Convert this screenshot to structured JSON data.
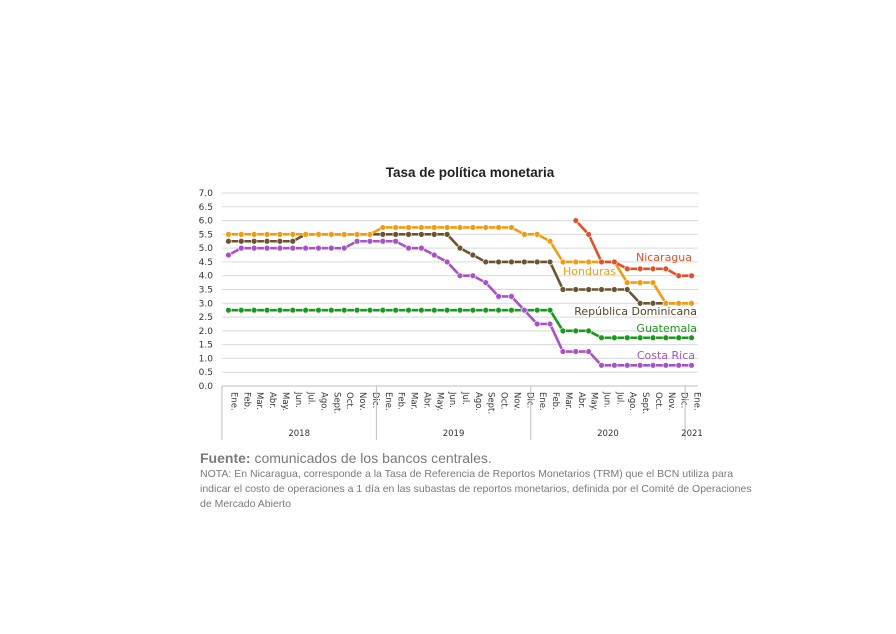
{
  "chart_data": {
    "type": "line",
    "title": "Tasa de política monetaria",
    "xlabel": "",
    "ylabel": "",
    "ylim": [
      0,
      7
    ],
    "y_ticks": [
      "0.0",
      "0.5",
      "1.0",
      "1.5",
      "2.0",
      "2.5",
      "3.0",
      "3.5",
      "4.0",
      "4.5",
      "5.0",
      "5.5",
      "6.0",
      "6.5",
      "7.0"
    ],
    "grid": true,
    "legend": "inline labels at right end of series",
    "categories": [
      "Ene.",
      "Feb.",
      "Mar.",
      "Abr.",
      "May.",
      "Jun.",
      "Jul.",
      "Ago.",
      "Sept.",
      "Oct.",
      "Nov.",
      "Dic.",
      "Ene.",
      "Feb.",
      "Mar.",
      "Abr.",
      "May.",
      "Jun.",
      "Jul.",
      "Ago.",
      "Sept.",
      "Oct.",
      "Nov.",
      "Dic.",
      "Ene.",
      "Feb.",
      "Mar.",
      "Abr.",
      "May.",
      "Jun.",
      "Jul.",
      "Ago.",
      "Sept.",
      "Oct.",
      "Nov.",
      "Dic.",
      "Ene."
    ],
    "year_groups": [
      {
        "label": "2018",
        "start": 0,
        "end": 11
      },
      {
        "label": "2019",
        "start": 12,
        "end": 23
      },
      {
        "label": "2020",
        "start": 24,
        "end": 35
      },
      {
        "label": "2021",
        "start": 36,
        "end": 36
      }
    ],
    "series": [
      {
        "name": "Nicaragua",
        "color": "#e0522a",
        "label_color": "#e0522a",
        "values": [
          null,
          null,
          null,
          null,
          null,
          null,
          null,
          null,
          null,
          null,
          null,
          null,
          null,
          null,
          null,
          null,
          null,
          null,
          null,
          null,
          null,
          null,
          null,
          null,
          null,
          null,
          null,
          6.0,
          5.5,
          4.5,
          4.5,
          4.25,
          4.25,
          4.25,
          4.25,
          4.0,
          4.0
        ]
      },
      {
        "name": "Honduras",
        "color": "#f39c12",
        "label_color": "#f39c12",
        "values": [
          5.5,
          5.5,
          5.5,
          5.5,
          5.5,
          5.5,
          5.5,
          5.5,
          5.5,
          5.5,
          5.5,
          5.5,
          5.75,
          5.75,
          5.75,
          5.75,
          5.75,
          5.75,
          5.75,
          5.75,
          5.75,
          5.75,
          5.75,
          5.5,
          5.5,
          5.25,
          4.5,
          4.5,
          4.5,
          4.5,
          4.5,
          3.75,
          3.75,
          3.75,
          3.0,
          3.0,
          3.0
        ]
      },
      {
        "name": "República Dominicana",
        "color": "#6b5330",
        "label_color": "#5a4526",
        "values": [
          5.25,
          5.25,
          5.25,
          5.25,
          5.25,
          5.25,
          5.5,
          5.5,
          5.5,
          5.5,
          5.5,
          5.5,
          5.5,
          5.5,
          5.5,
          5.5,
          5.5,
          5.5,
          5.0,
          4.75,
          4.5,
          4.5,
          4.5,
          4.5,
          4.5,
          4.5,
          3.5,
          3.5,
          3.5,
          3.5,
          3.5,
          3.5,
          3.0,
          3.0,
          3.0,
          3.0,
          3.0
        ]
      },
      {
        "name": "Guatemala",
        "color": "#1a9a1a",
        "label_color": "#1a9a1a",
        "values": [
          2.75,
          2.75,
          2.75,
          2.75,
          2.75,
          2.75,
          2.75,
          2.75,
          2.75,
          2.75,
          2.75,
          2.75,
          2.75,
          2.75,
          2.75,
          2.75,
          2.75,
          2.75,
          2.75,
          2.75,
          2.75,
          2.75,
          2.75,
          2.75,
          2.75,
          2.75,
          2.0,
          2.0,
          2.0,
          1.75,
          1.75,
          1.75,
          1.75,
          1.75,
          1.75,
          1.75,
          1.75
        ]
      },
      {
        "name": "Costa Rica",
        "color": "#a752c9",
        "label_color": "#a752c9",
        "values": [
          4.75,
          5.0,
          5.0,
          5.0,
          5.0,
          5.0,
          5.0,
          5.0,
          5.0,
          5.0,
          5.25,
          5.25,
          5.25,
          5.25,
          5.0,
          5.0,
          4.75,
          4.5,
          4.0,
          4.0,
          3.75,
          3.25,
          3.25,
          2.75,
          2.25,
          2.25,
          1.25,
          1.25,
          1.25,
          0.75,
          0.75,
          0.75,
          0.75,
          0.75,
          0.75,
          0.75,
          0.75
        ]
      }
    ]
  },
  "footer": {
    "source_label": "Fuente:",
    "source_text": "comunicados de los bancos centrales.",
    "note": "NOTA: En Nicaragua, corresponde a la Tasa de Referencia de Reportos Monetarios (TRM) que el BCN utiliza para indicar el costo de operaciones a 1 día en las subastas de reportos monetarios, definida por el Comité de Operaciones de Mercado Abierto"
  }
}
